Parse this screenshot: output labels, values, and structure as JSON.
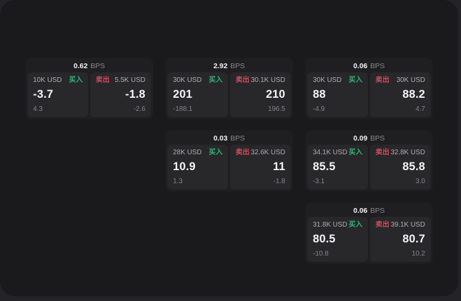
{
  "labels": {
    "bps_suffix": "BPS",
    "buy": "买入",
    "sell": "卖出"
  },
  "colors": {
    "buy": "#34b277",
    "sell": "#d4495d",
    "window_bg": "#1a1a1c",
    "card_bg": "#1f1f21",
    "panel_bg": "#28282b"
  },
  "cards": [
    {
      "bps": "0.62",
      "buy": {
        "amount": "10K USD",
        "price": "-3.7",
        "delta": "4.3"
      },
      "sell": {
        "amount": "5.5K USD",
        "price": "-1.8",
        "delta": "-2.6"
      }
    },
    {
      "bps": "2.92",
      "buy": {
        "amount": "30K USD",
        "price": "201",
        "delta": "-188.1"
      },
      "sell": {
        "amount": "30.1K USD",
        "price": "210",
        "delta": "196.5"
      }
    },
    {
      "bps": "0.06",
      "buy": {
        "amount": "30K USD",
        "price": "88",
        "delta": "-4.9"
      },
      "sell": {
        "amount": "30K USD",
        "price": "88.2",
        "delta": "4.7"
      }
    },
    {
      "bps": "0.03",
      "buy": {
        "amount": "28K USD",
        "price": "10.9",
        "delta": "1.3"
      },
      "sell": {
        "amount": "32.6K USD",
        "price": "11",
        "delta": "-1.8"
      }
    },
    {
      "bps": "0.09",
      "buy": {
        "amount": "34.1K USD",
        "price": "85.5",
        "delta": "-3.1"
      },
      "sell": {
        "amount": "32.8K USD",
        "price": "85.8",
        "delta": "3.0"
      }
    },
    {
      "bps": "0.06",
      "buy": {
        "amount": "31.8K USD",
        "price": "80.5",
        "delta": "-10.8"
      },
      "sell": {
        "amount": "39.1K USD",
        "price": "80.7",
        "delta": "10.2"
      }
    }
  ]
}
